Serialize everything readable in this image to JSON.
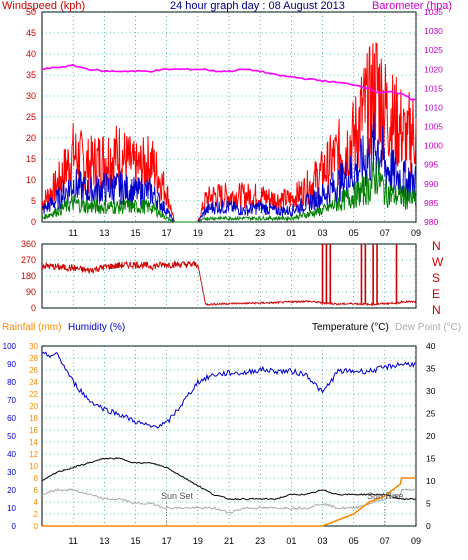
{
  "header": {
    "left": "Windspeed (kph)",
    "center": "24 hour graph day : 08 August 2013",
    "right": "Barometer (hpa)"
  },
  "colors": {
    "wind_gust": "#ff0000",
    "wind_avg": "#0000cc",
    "wind_low": "#008000",
    "barometer": "#ff00ff",
    "direction": "#cc0000",
    "humidity": "#0000cc",
    "temperature": "#000000",
    "dewpoint": "#aaaaaa",
    "rainfall": "#ff8800",
    "grid": "#008080"
  },
  "time_ticks": [
    "11",
    "13",
    "15",
    "17",
    "19",
    "21",
    "23",
    "01",
    "03",
    "05",
    "07",
    "09"
  ],
  "chart_data": [
    {
      "type": "line",
      "id": "wind_baro",
      "title": "24 hour graph day : 08 August 2013",
      "ylabel": "Windspeed (kph)",
      "y2label": "Barometer (hpa)",
      "ylim": [
        0,
        50
      ],
      "y2lim": [
        980,
        1035
      ],
      "yticks": [
        "0",
        "5",
        "10",
        "15",
        "20",
        "25",
        "30",
        "35",
        "40",
        "45",
        "50"
      ],
      "y2ticks": [
        "980",
        "985",
        "990",
        "995",
        "1000",
        "1005",
        "1010",
        "1015",
        "1020",
        "1025",
        "1030",
        "1035"
      ],
      "x": [
        "09:00",
        "10:00",
        "11:00",
        "12:00",
        "13:00",
        "14:00",
        "15:00",
        "16:00",
        "17:00",
        "17:30",
        "18:00",
        "19:00",
        "19:30",
        "20:00",
        "21:00",
        "22:00",
        "23:00",
        "00:00",
        "01:00",
        "02:00",
        "03:00",
        "04:00",
        "05:00",
        "05:30",
        "06:00",
        "06:30",
        "07:00",
        "07:30",
        "08:00",
        "08:30",
        "09:00"
      ],
      "series": [
        {
          "name": "gust",
          "values": [
            5,
            10,
            18,
            15,
            17,
            18,
            14,
            16,
            8,
            0,
            0,
            0,
            6,
            7,
            7,
            7,
            7,
            6,
            6,
            9,
            13,
            18,
            22,
            28,
            31,
            36,
            30,
            27,
            25,
            20,
            24
          ]
        },
        {
          "name": "average",
          "values": [
            3,
            6,
            10,
            8,
            9,
            9,
            8,
            8,
            3,
            0,
            0,
            0,
            3,
            4,
            4,
            3,
            4,
            3,
            3,
            5,
            7,
            10,
            13,
            15,
            17,
            21,
            15,
            13,
            12,
            10,
            11
          ]
        },
        {
          "name": "low",
          "values": [
            1,
            3,
            5,
            4,
            4,
            4,
            4,
            4,
            1,
            0,
            0,
            0,
            1,
            1,
            1,
            1,
            1,
            1,
            1,
            2,
            3,
            5,
            7,
            8,
            9,
            13,
            8,
            7,
            7,
            6,
            6
          ]
        },
        {
          "name": "barometer",
          "values": [
            1020,
            1020.5,
            1021,
            1020,
            1019.5,
            1019.5,
            1019.5,
            1019.5,
            1020,
            1020,
            1020,
            1020,
            1020,
            1019.5,
            1019.5,
            1020,
            1019.5,
            1018.5,
            1018,
            1017.5,
            1017,
            1016.5,
            1016,
            1015.5,
            1015,
            1014,
            1014,
            1014,
            1013.5,
            1013,
            1012
          ]
        }
      ]
    },
    {
      "type": "scatter",
      "id": "wind_direction",
      "ylim": [
        0,
        360
      ],
      "yticks": [
        "0",
        "90",
        "180",
        "270",
        "360"
      ],
      "compass": [
        "N",
        "W",
        "S",
        "E",
        "N"
      ],
      "x": [
        "09:00",
        "10:00",
        "11:00",
        "12:00",
        "13:00",
        "14:00",
        "15:00",
        "16:00",
        "17:00",
        "19:00",
        "19:30",
        "21:00",
        "23:00",
        "00:00",
        "01:00",
        "02:00",
        "03:00",
        "04:00",
        "05:00",
        "06:00",
        "07:00",
        "08:00",
        "09:00"
      ],
      "series": [
        {
          "name": "direction",
          "values": [
            240,
            230,
            225,
            210,
            230,
            240,
            245,
            235,
            245,
            245,
            20,
            25,
            28,
            30,
            35,
            38,
            30,
            22,
            25,
            20,
            25,
            30,
            35
          ]
        }
      ],
      "spikes_to_360_at": [
        "03:00",
        "03:15",
        "03:30",
        "05:30",
        "05:45",
        "06:15",
        "06:30",
        "07:45"
      ]
    },
    {
      "type": "line",
      "id": "temp_hum_rain",
      "title": "",
      "left_label_rain": "Rainfall (mm)",
      "left_label_hum": "Humidity (%)",
      "right_label_temp": "Temperature (°C)",
      "right_label_dew": "Dew Point (°C)",
      "ylim_humidity": [
        0,
        100
      ],
      "ylim_rain": [
        0,
        30
      ],
      "ylim_temp": [
        0,
        40
      ],
      "yticks_humidity": [
        "0",
        "10",
        "20",
        "30",
        "40",
        "50",
        "60",
        "70",
        "80",
        "90",
        "100"
      ],
      "yticks_rain": [
        "0",
        "2",
        "4",
        "6",
        "8",
        "10",
        "12",
        "14",
        "16",
        "18",
        "20",
        "22",
        "24",
        "26",
        "28",
        "30"
      ],
      "yticks_temp": [
        "0",
        "5",
        "10",
        "15",
        "20",
        "25",
        "30",
        "35",
        "40"
      ],
      "annotations": [
        "Sun Set",
        "Sun Rise"
      ],
      "x": [
        "09:00",
        "10:00",
        "11:00",
        "12:00",
        "13:00",
        "14:00",
        "15:00",
        "16:00",
        "17:00",
        "18:00",
        "19:00",
        "20:00",
        "21:00",
        "22:00",
        "23:00",
        "00:00",
        "01:00",
        "02:00",
        "03:00",
        "04:00",
        "05:00",
        "06:00",
        "07:00",
        "08:00",
        "09:00"
      ],
      "series": [
        {
          "name": "humidity",
          "values": [
            95,
            95,
            80,
            70,
            65,
            62,
            58,
            55,
            57,
            68,
            80,
            84,
            85,
            85,
            87,
            86,
            86,
            84,
            74,
            86,
            86,
            86,
            88,
            90,
            90
          ]
        },
        {
          "name": "temperature",
          "values": [
            10,
            12,
            13,
            14,
            15,
            15,
            14,
            14,
            13,
            11,
            9,
            7,
            6,
            6,
            6,
            6,
            7,
            7,
            8,
            7,
            7,
            7,
            7,
            6,
            6
          ]
        },
        {
          "name": "dewpoint",
          "values": [
            7,
            8,
            8,
            7,
            6,
            6,
            5,
            5,
            4,
            4,
            4,
            4,
            3,
            4,
            4,
            4,
            4,
            4,
            5,
            4,
            4,
            5,
            6,
            7,
            8
          ]
        },
        {
          "name": "rainfall",
          "values": [
            0,
            0,
            0,
            0,
            0,
            0,
            0,
            0,
            0,
            0,
            0,
            0,
            0,
            0,
            0,
            0,
            0,
            0,
            0,
            1,
            2,
            4,
            5,
            7,
            8
          ]
        }
      ]
    }
  ]
}
